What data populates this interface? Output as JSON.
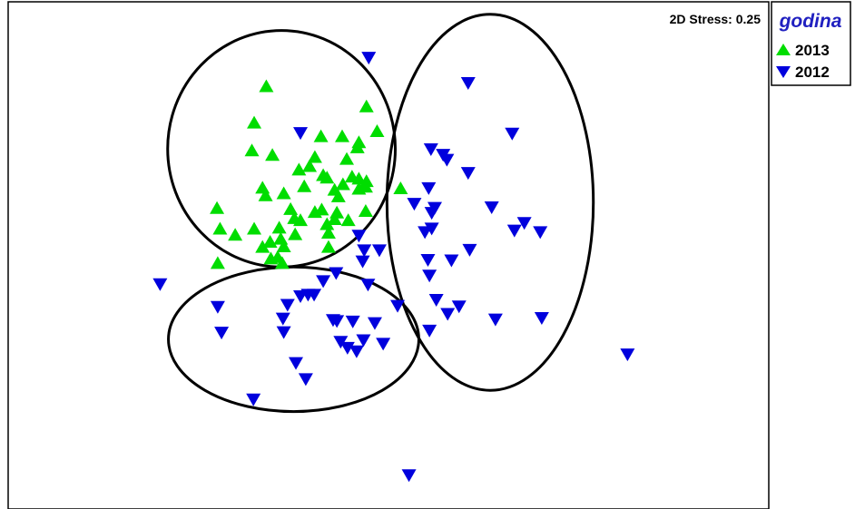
{
  "chart_data": {
    "type": "scatter",
    "subtype": "nMDS ordination",
    "stress_label": "2D Stress: 0.25",
    "legend": {
      "title": "godina",
      "placement": "top-right outside plot",
      "entries": [
        {
          "label": "2013",
          "marker": "triangle-up",
          "color": "#00dd00"
        },
        {
          "label": "2012",
          "marker": "triangle-down",
          "color": "#0000dd"
        }
      ]
    },
    "axes": {
      "x_visible": false,
      "y_visible": false,
      "xlim": [
        0,
        100
      ],
      "ylim": [
        0,
        100
      ]
    },
    "grid": false,
    "colors": {
      "series_2013": "#00dd00",
      "series_2012": "#0000dd",
      "ellipse": "#000000",
      "frame": "#000000",
      "legend_title": "#2020c0"
    },
    "series": [
      {
        "name": "2013",
        "points": [
          [
            33.9,
            83.4
          ],
          [
            47.1,
            79.4
          ],
          [
            32.3,
            76.2
          ],
          [
            48.5,
            74.5
          ],
          [
            41.1,
            73.5
          ],
          [
            43.9,
            73.5
          ],
          [
            46.1,
            72.3
          ],
          [
            45.9,
            71.3
          ],
          [
            32.0,
            70.7
          ],
          [
            34.7,
            69.8
          ],
          [
            40.3,
            69.4
          ],
          [
            44.5,
            69.0
          ],
          [
            39.6,
            67.6
          ],
          [
            38.2,
            66.9
          ],
          [
            41.4,
            65.8
          ],
          [
            45.2,
            65.5
          ],
          [
            41.9,
            65.3
          ],
          [
            46.1,
            65.1
          ],
          [
            47.1,
            64.6
          ],
          [
            44.0,
            64.0
          ],
          [
            33.4,
            63.3
          ],
          [
            38.9,
            63.6
          ],
          [
            47.0,
            63.5
          ],
          [
            46.1,
            63.1
          ],
          [
            51.6,
            63.2
          ],
          [
            42.9,
            62.9
          ],
          [
            36.2,
            62.2
          ],
          [
            33.8,
            61.8
          ],
          [
            43.4,
            61.6
          ],
          [
            27.4,
            59.3
          ],
          [
            37.1,
            59.1
          ],
          [
            41.2,
            59.0
          ],
          [
            40.3,
            58.5
          ],
          [
            43.2,
            58.4
          ],
          [
            47.0,
            58.7
          ],
          [
            37.6,
            57.3
          ],
          [
            42.9,
            57.1
          ],
          [
            44.7,
            56.9
          ],
          [
            38.4,
            56.9
          ],
          [
            27.8,
            55.2
          ],
          [
            32.3,
            55.2
          ],
          [
            35.6,
            55.4
          ],
          [
            41.9,
            56.1
          ],
          [
            37.7,
            54.1
          ],
          [
            29.8,
            54.0
          ],
          [
            42.1,
            54.4
          ],
          [
            35.8,
            53.2
          ],
          [
            34.4,
            52.6
          ],
          [
            36.2,
            51.7
          ],
          [
            33.4,
            51.6
          ],
          [
            42.1,
            51.6
          ],
          [
            34.5,
            49.3
          ],
          [
            35.4,
            49.6
          ],
          [
            27.5,
            48.4
          ],
          [
            36.0,
            48.4
          ]
        ]
      },
      {
        "name": "2012",
        "points": [
          [
            47.4,
            89.2
          ],
          [
            60.5,
            84.2
          ],
          [
            38.4,
            74.3
          ],
          [
            66.3,
            74.2
          ],
          [
            55.6,
            71.1
          ],
          [
            57.2,
            70.0
          ],
          [
            57.7,
            69.0
          ],
          [
            60.5,
            66.4
          ],
          [
            55.3,
            63.4
          ],
          [
            53.4,
            60.3
          ],
          [
            56.1,
            59.5
          ],
          [
            63.6,
            59.6
          ],
          [
            55.7,
            58.5
          ],
          [
            67.9,
            56.5
          ],
          [
            55.7,
            55.4
          ],
          [
            54.8,
            54.7
          ],
          [
            66.6,
            55.0
          ],
          [
            70.0,
            54.7
          ],
          [
            46.1,
            54.0
          ],
          [
            46.8,
            51.1
          ],
          [
            48.8,
            51.1
          ],
          [
            60.7,
            51.2
          ],
          [
            55.2,
            49.2
          ],
          [
            58.3,
            49.1
          ],
          [
            46.6,
            48.9
          ],
          [
            43.1,
            46.6
          ],
          [
            55.4,
            46.1
          ],
          [
            41.4,
            45.0
          ],
          [
            19.9,
            44.4
          ],
          [
            47.3,
            44.3
          ],
          [
            39.4,
            42.3
          ],
          [
            40.2,
            42.3
          ],
          [
            38.4,
            42.0
          ],
          [
            56.3,
            41.3
          ],
          [
            51.2,
            40.1
          ],
          [
            27.5,
            39.9
          ],
          [
            36.7,
            40.3
          ],
          [
            59.3,
            40.0
          ],
          [
            57.8,
            38.5
          ],
          [
            70.2,
            37.7
          ],
          [
            36.1,
            37.6
          ],
          [
            64.1,
            37.4
          ],
          [
            42.7,
            37.3
          ],
          [
            45.3,
            37.0
          ],
          [
            43.2,
            37.1
          ],
          [
            48.2,
            36.7
          ],
          [
            55.4,
            35.2
          ],
          [
            28.0,
            34.8
          ],
          [
            36.2,
            34.9
          ],
          [
            43.7,
            33.0
          ],
          [
            46.7,
            33.3
          ],
          [
            49.3,
            32.6
          ],
          [
            44.6,
            31.8
          ],
          [
            45.8,
            31.1
          ],
          [
            81.5,
            30.5
          ],
          [
            37.8,
            28.8
          ],
          [
            39.1,
            25.6
          ],
          [
            32.2,
            21.6
          ],
          [
            52.7,
            6.6
          ]
        ]
      }
    ],
    "ellipses": [
      {
        "cx": 35.9,
        "cy": 71.1,
        "rx": 15.0,
        "ry": 23.4
      },
      {
        "cx": 63.4,
        "cy": 60.5,
        "rx": 13.6,
        "ry": 37.2
      },
      {
        "cx": 37.5,
        "cy": 33.4,
        "rx": 16.5,
        "ry": 14.3
      }
    ]
  }
}
